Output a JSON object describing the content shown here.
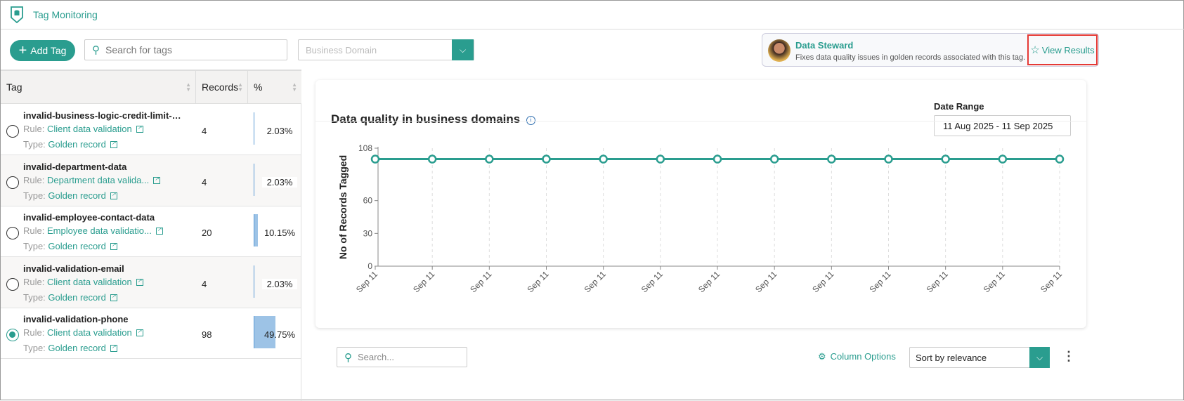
{
  "header": {
    "title": "Tag Monitoring",
    "icon": "shield-database-icon"
  },
  "toolbar": {
    "add_tag": "Add Tag",
    "search_placeholder": "Search for tags",
    "domain_placeholder": "Business Domain"
  },
  "steward": {
    "name": "Data Steward",
    "description": "Fixes data quality issues in golden records associated with this tag.",
    "view_results": "View Results"
  },
  "table": {
    "columns": [
      "Tag",
      "Records",
      "%"
    ],
    "rule_label": "Rule:",
    "type_label": "Type:",
    "rows": [
      {
        "name": "invalid-business-logic-credit-limit-mis...",
        "rule": "Client data validation",
        "type": "Golden record",
        "records": "4",
        "pct": "2.03%",
        "pct_value": 2.03,
        "selected": false
      },
      {
        "name": "invalid-department-data",
        "rule": "Department data valida...",
        "type": "Golden record",
        "records": "4",
        "pct": "2.03%",
        "pct_value": 2.03,
        "selected": false
      },
      {
        "name": "invalid-employee-contact-data",
        "rule": "Employee data validatio...",
        "type": "Golden record",
        "records": "20",
        "pct": "10.15%",
        "pct_value": 10.15,
        "selected": false
      },
      {
        "name": "invalid-validation-email",
        "rule": "Client data validation",
        "type": "Golden record",
        "records": "4",
        "pct": "2.03%",
        "pct_value": 2.03,
        "selected": false
      },
      {
        "name": "invalid-validation-phone",
        "rule": "Client data validation",
        "type": "Golden record",
        "records": "98",
        "pct": "49.75%",
        "pct_value": 49.75,
        "selected": true
      }
    ]
  },
  "card": {
    "title": "Data quality in business domains",
    "date_range_label": "Date Range",
    "date_range": "11 Aug 2025 - 11 Sep 2025"
  },
  "bottom": {
    "search_placeholder": "Search...",
    "column_options": "Column Options",
    "sort": "Sort by relevance"
  },
  "colors": {
    "accent": "#2a9d8f",
    "bar": "#9dc3e6",
    "highlight": "#e53935"
  },
  "chart_data": {
    "type": "line",
    "title": "Data quality in business domains",
    "ylabel": "No of Records Tagged",
    "xlabel": "",
    "ylim": [
      0,
      108
    ],
    "yticks": [
      0,
      30,
      60,
      108
    ],
    "categories": [
      "Sep 11",
      "Sep 11",
      "Sep 11",
      "Sep 11",
      "Sep 11",
      "Sep 11",
      "Sep 11",
      "Sep 11",
      "Sep 11",
      "Sep 11",
      "Sep 11",
      "Sep 11",
      "Sep 11"
    ],
    "series": [
      {
        "name": "Records Tagged",
        "values": [
          98,
          98,
          98,
          98,
          98,
          98,
          98,
          98,
          98,
          98,
          98,
          98,
          98
        ]
      }
    ],
    "grid": "vertical-dashed"
  }
}
